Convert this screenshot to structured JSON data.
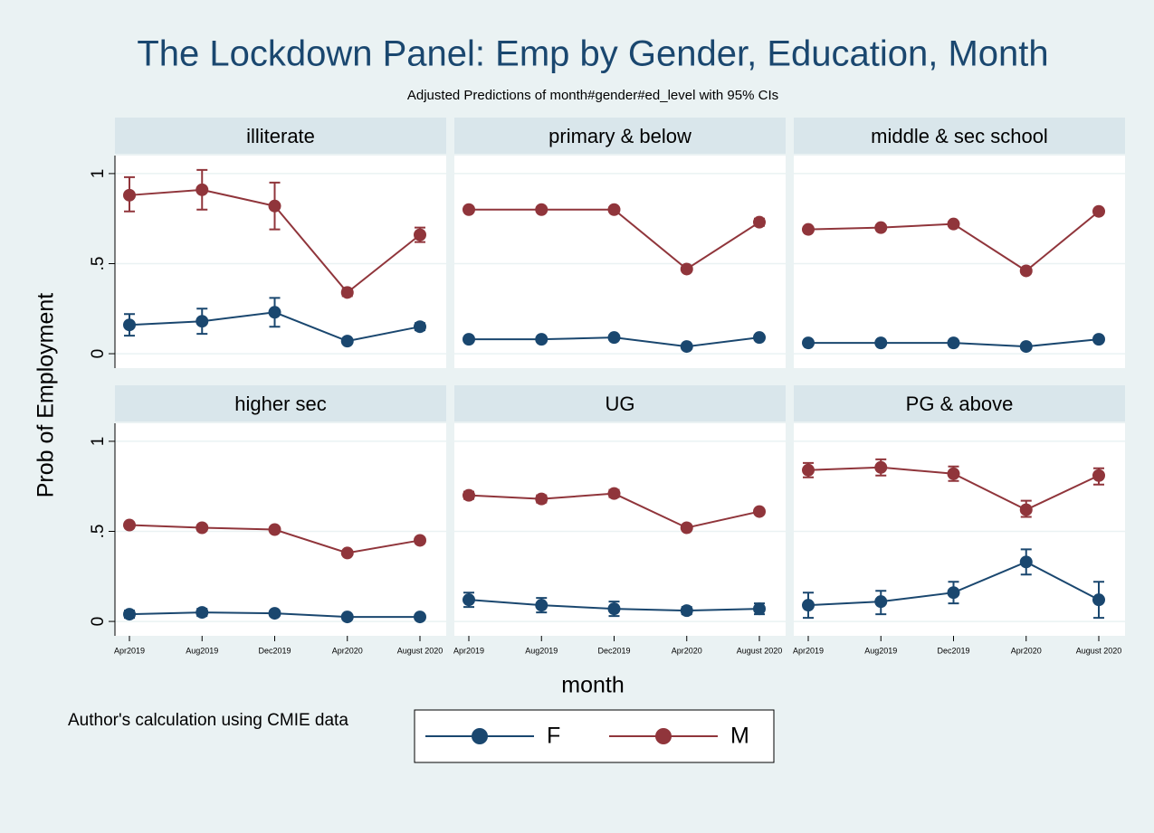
{
  "figure": {
    "title": "The Lockdown Panel: Emp by Gender, Education, Month",
    "subtitle": "Adjusted Predictions of month#gender#ed_level with 95% CIs",
    "y_label": "Prob of Employment",
    "x_label": "month",
    "note": "Author's calculation using CMIE data"
  },
  "chart_data": [
    {
      "type": "line",
      "title": "illiterate",
      "categories": [
        "Apr2019",
        "Aug2019",
        "Dec2019",
        "Apr2020",
        "August 2020"
      ],
      "ylim": [
        -0.08,
        1.1
      ],
      "yticks": [
        0,
        {
          "value": 0.5,
          "label": ".5"
        },
        1
      ],
      "grid": true,
      "series": [
        {
          "name": "F",
          "color": "#1a476f",
          "values": [
            0.16,
            0.18,
            0.23,
            0.07,
            0.15
          ],
          "lower": [
            0.1,
            0.11,
            0.15,
            0.06,
            0.13
          ],
          "upper": [
            0.22,
            0.25,
            0.31,
            0.08,
            0.17
          ]
        },
        {
          "name": "M",
          "color": "#90353b",
          "values": [
            0.88,
            0.91,
            0.82,
            0.34,
            0.66
          ],
          "lower": [
            0.79,
            0.8,
            0.69,
            0.32,
            0.62
          ],
          "upper": [
            0.98,
            1.02,
            0.95,
            0.36,
            0.7
          ]
        }
      ]
    },
    {
      "type": "line",
      "title": "primary & below",
      "categories": [
        "Apr2019",
        "Aug2019",
        "Dec2019",
        "Apr2020",
        "August 2020"
      ],
      "ylim": [
        -0.08,
        1.1
      ],
      "yticks": [
        0,
        {
          "value": 0.5,
          "label": ".5"
        },
        1
      ],
      "grid": true,
      "series": [
        {
          "name": "F",
          "color": "#1a476f",
          "values": [
            0.08,
            0.08,
            0.09,
            0.04,
            0.09
          ],
          "lower": [
            0.07,
            0.07,
            0.08,
            0.03,
            0.08
          ],
          "upper": [
            0.09,
            0.09,
            0.1,
            0.05,
            0.1
          ]
        },
        {
          "name": "M",
          "color": "#90353b",
          "values": [
            0.8,
            0.8,
            0.8,
            0.47,
            0.73
          ],
          "lower": [
            0.79,
            0.79,
            0.79,
            0.46,
            0.71
          ],
          "upper": [
            0.81,
            0.81,
            0.81,
            0.48,
            0.75
          ]
        }
      ]
    },
    {
      "type": "line",
      "title": "middle & sec school",
      "categories": [
        "Apr2019",
        "Aug2019",
        "Dec2019",
        "Apr2020",
        "August 2020"
      ],
      "ylim": [
        -0.08,
        1.1
      ],
      "yticks": [
        0,
        {
          "value": 0.5,
          "label": ".5"
        },
        1
      ],
      "grid": true,
      "series": [
        {
          "name": "F",
          "color": "#1a476f",
          "values": [
            0.06,
            0.06,
            0.06,
            0.04,
            0.08
          ],
          "lower": [
            0.05,
            0.05,
            0.05,
            0.03,
            0.07
          ],
          "upper": [
            0.07,
            0.07,
            0.07,
            0.05,
            0.09
          ]
        },
        {
          "name": "M",
          "color": "#90353b",
          "values": [
            0.69,
            0.7,
            0.72,
            0.46,
            0.79
          ],
          "lower": [
            0.68,
            0.69,
            0.71,
            0.45,
            0.78
          ],
          "upper": [
            0.7,
            0.71,
            0.73,
            0.47,
            0.8
          ]
        }
      ]
    },
    {
      "type": "line",
      "title": "higher sec",
      "categories": [
        "Apr2019",
        "Aug2019",
        "Dec2019",
        "Apr2020",
        "August 2020"
      ],
      "ylim": [
        -0.08,
        1.1
      ],
      "yticks": [
        0,
        {
          "value": 0.5,
          "label": ".5"
        },
        1
      ],
      "grid": true,
      "series": [
        {
          "name": "F",
          "color": "#1a476f",
          "values": [
            0.04,
            0.05,
            0.045,
            0.025,
            0.025
          ],
          "lower": [
            0.02,
            0.03,
            0.03,
            0.015,
            0.015
          ],
          "upper": [
            0.06,
            0.07,
            0.06,
            0.035,
            0.035
          ]
        },
        {
          "name": "M",
          "color": "#90353b",
          "values": [
            0.535,
            0.52,
            0.51,
            0.38,
            0.45
          ],
          "lower": [
            0.52,
            0.505,
            0.495,
            0.37,
            0.435
          ],
          "upper": [
            0.55,
            0.535,
            0.525,
            0.39,
            0.465
          ]
        }
      ]
    },
    {
      "type": "line",
      "title": "UG",
      "categories": [
        "Apr2019",
        "Aug2019",
        "Dec2019",
        "Apr2020",
        "August 2020"
      ],
      "ylim": [
        -0.08,
        1.1
      ],
      "yticks": [
        0,
        {
          "value": 0.5,
          "label": ".5"
        },
        1
      ],
      "grid": true,
      "series": [
        {
          "name": "F",
          "color": "#1a476f",
          "values": [
            0.12,
            0.09,
            0.07,
            0.06,
            0.07
          ],
          "lower": [
            0.08,
            0.05,
            0.03,
            0.04,
            0.04
          ],
          "upper": [
            0.16,
            0.13,
            0.11,
            0.08,
            0.1
          ]
        },
        {
          "name": "M",
          "color": "#90353b",
          "values": [
            0.7,
            0.68,
            0.71,
            0.52,
            0.61
          ],
          "lower": [
            0.68,
            0.66,
            0.69,
            0.51,
            0.6
          ],
          "upper": [
            0.72,
            0.7,
            0.73,
            0.53,
            0.62
          ]
        }
      ]
    },
    {
      "type": "line",
      "title": "PG & above",
      "categories": [
        "Apr2019",
        "Aug2019",
        "Dec2019",
        "Apr2020",
        "August 2020"
      ],
      "ylim": [
        -0.08,
        1.1
      ],
      "yticks": [
        0,
        {
          "value": 0.5,
          "label": ".5"
        },
        1
      ],
      "grid": true,
      "series": [
        {
          "name": "F",
          "color": "#1a476f",
          "values": [
            0.09,
            0.11,
            0.16,
            0.33,
            0.12
          ],
          "lower": [
            0.02,
            0.04,
            0.1,
            0.26,
            0.02
          ],
          "upper": [
            0.16,
            0.17,
            0.22,
            0.4,
            0.22
          ]
        },
        {
          "name": "M",
          "color": "#90353b",
          "values": [
            0.84,
            0.855,
            0.82,
            0.62,
            0.81
          ],
          "lower": [
            0.8,
            0.81,
            0.78,
            0.58,
            0.76
          ],
          "upper": [
            0.88,
            0.9,
            0.86,
            0.67,
            0.85
          ]
        }
      ]
    }
  ]
}
